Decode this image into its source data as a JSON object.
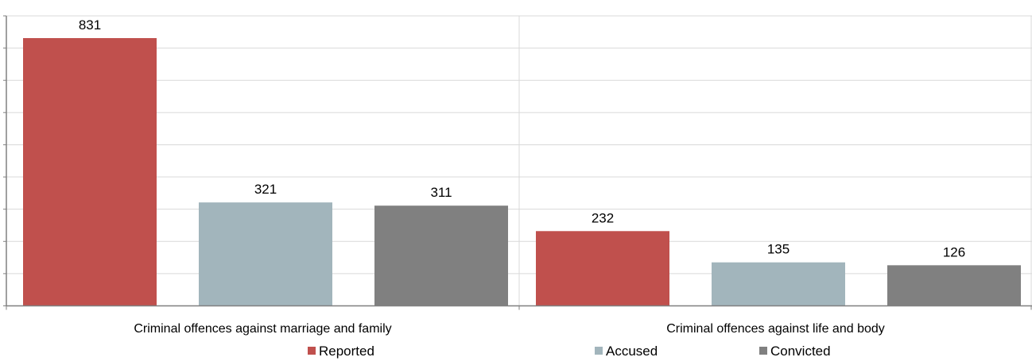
{
  "chart_data": {
    "type": "bar",
    "title": "",
    "xlabel": "",
    "ylabel": "",
    "categories": [
      "Criminal offences against marriage and family",
      "Criminal offences against life and body"
    ],
    "series": [
      {
        "name": "Reported",
        "color": "#c0504d",
        "values": [
          831,
          232
        ]
      },
      {
        "name": "Accused",
        "color": "#a2b5bc",
        "values": [
          321,
          135
        ]
      },
      {
        "name": "Convicted",
        "color": "#808080",
        "values": [
          311,
          126
        ]
      }
    ],
    "ylim": [
      0,
      900
    ],
    "y_grid_step": 100,
    "grid": true,
    "legend_position": "bottom",
    "data_labels": true
  }
}
